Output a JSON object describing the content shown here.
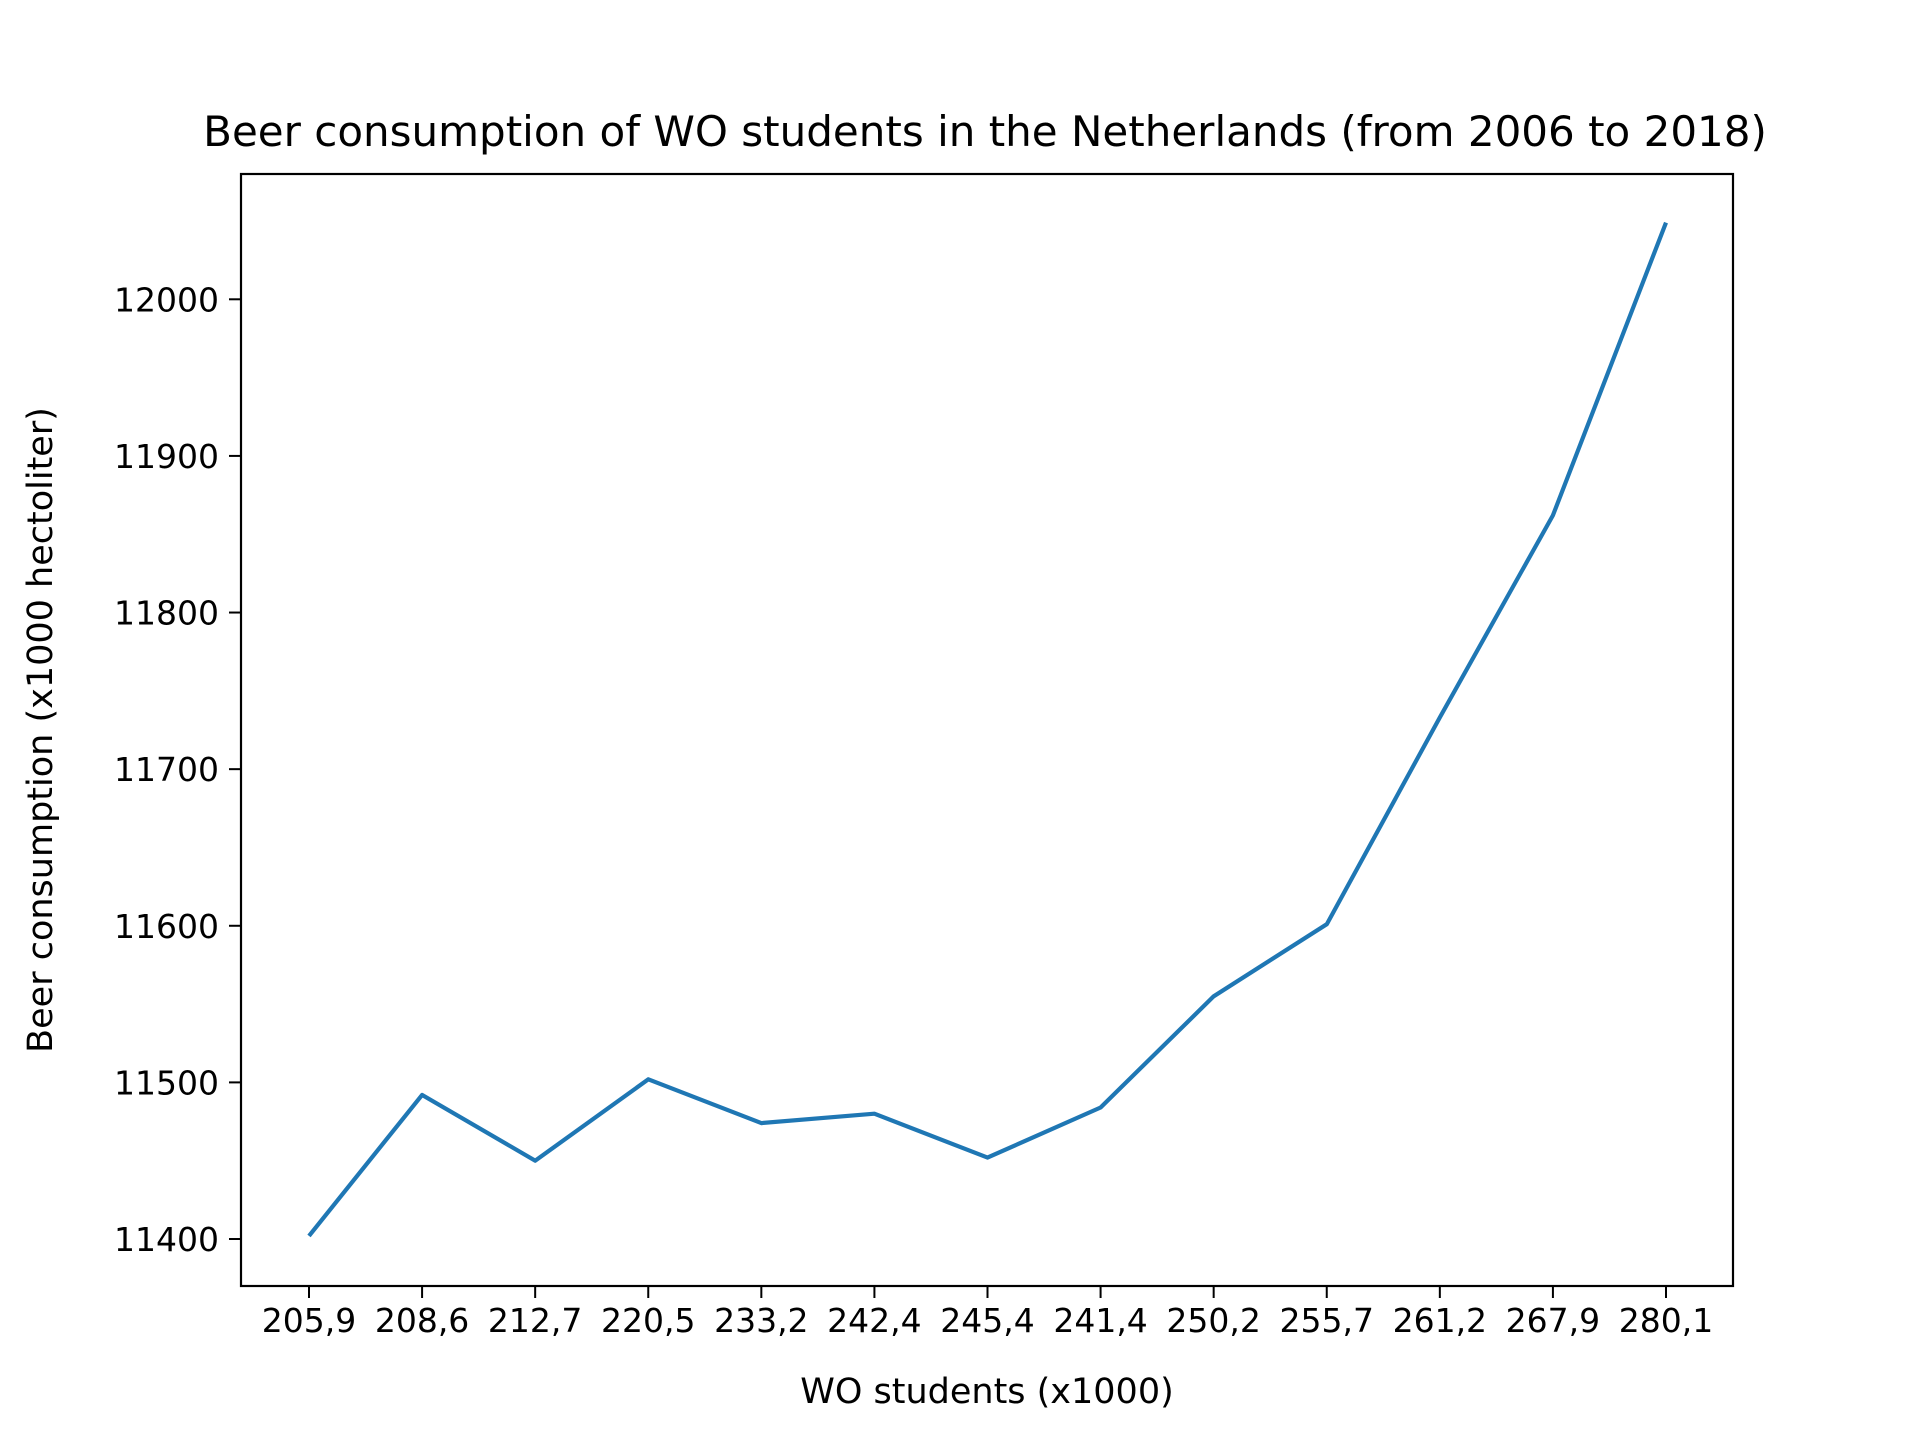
{
  "chart_data": {
    "type": "line",
    "title": "Beer consumption of WO students in the Netherlands (from 2006 to 2018)",
    "xlabel": "WO students (x1000)",
    "ylabel": "Beer consumption (x1000 hectoliter)",
    "categories": [
      "205,9",
      "208,6",
      "212,7",
      "220,5",
      "233,2",
      "242,4",
      "245,4",
      "241,4",
      "250,2",
      "255,7",
      "261,2",
      "267,9",
      "280,1"
    ],
    "series": [
      {
        "values": [
          11402,
          11492,
          11450,
          11502,
          11474,
          11480,
          11452,
          11484,
          11555,
          11601,
          11733,
          11862,
          12049
        ],
        "color": "#1f77b4"
      }
    ],
    "yticks": [
      11400,
      11500,
      11600,
      11700,
      11800,
      11900,
      12000
    ],
    "ylim": [
      11370,
      12080
    ],
    "grid": false,
    "legend": false
  }
}
